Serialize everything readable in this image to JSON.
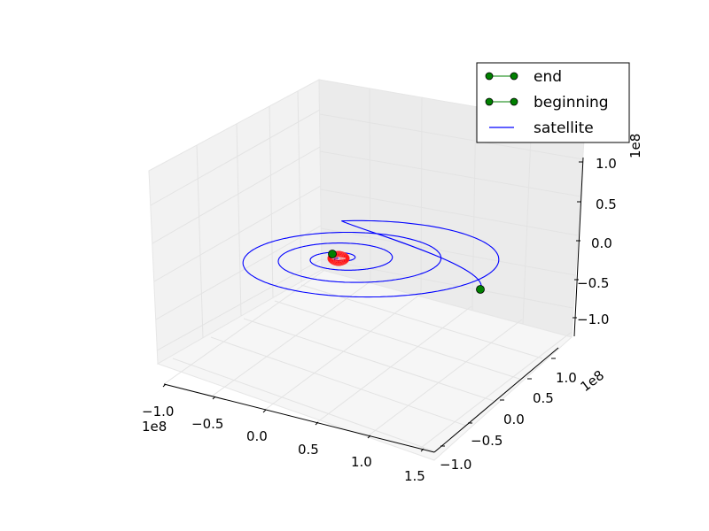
{
  "chart_data": {
    "type": "line3d",
    "title": "",
    "legend": {
      "placement": "top-right",
      "entries": [
        {
          "label": "end",
          "marker": "circle",
          "color": "#008000"
        },
        {
          "label": "beginning",
          "marker": "circle",
          "color": "#008000"
        },
        {
          "label": "satellite",
          "marker": "line",
          "color": "#0000ff"
        }
      ]
    },
    "axes": {
      "x": {
        "ticks": [
          "−1.0",
          "−0.5",
          "0.0",
          "0.5",
          "1.0",
          "1.5"
        ],
        "offset": "1e8",
        "lim": [
          -100000000,
          150000000
        ]
      },
      "y": {
        "ticks": [
          "−1.0",
          "−0.5",
          "0.0",
          "0.5",
          "1.0"
        ],
        "offset": "1e8",
        "lim": [
          -100000000,
          100000000
        ]
      },
      "z": {
        "ticks": [
          "−1.0",
          "−0.5",
          "0.0",
          "0.5",
          "1.0"
        ],
        "offset": "1e8",
        "lim": [
          -100000000,
          100000000
        ]
      },
      "grid": true
    },
    "series": [
      {
        "name": "satellite",
        "color": "#0000ff",
        "description_points": {
          "start": {
            "x": 0,
            "y": 0,
            "z": 0
          },
          "end": {
            "x": 115000000,
            "y": -50000000,
            "z": -10000000
          }
        },
        "turns": 4,
        "max_radius": 130000000
      },
      {
        "name": "central body",
        "color": "#ff0000",
        "center": {
          "x": 0,
          "y": 0,
          "z": 0
        },
        "radius": 7000000
      }
    ],
    "markers": [
      {
        "name": "beginning",
        "color": "#008000",
        "x": 0,
        "y": 0,
        "z": 0
      },
      {
        "name": "end",
        "color": "#008000",
        "x": 115000000,
        "y": -50000000,
        "z": -10000000
      }
    ]
  }
}
